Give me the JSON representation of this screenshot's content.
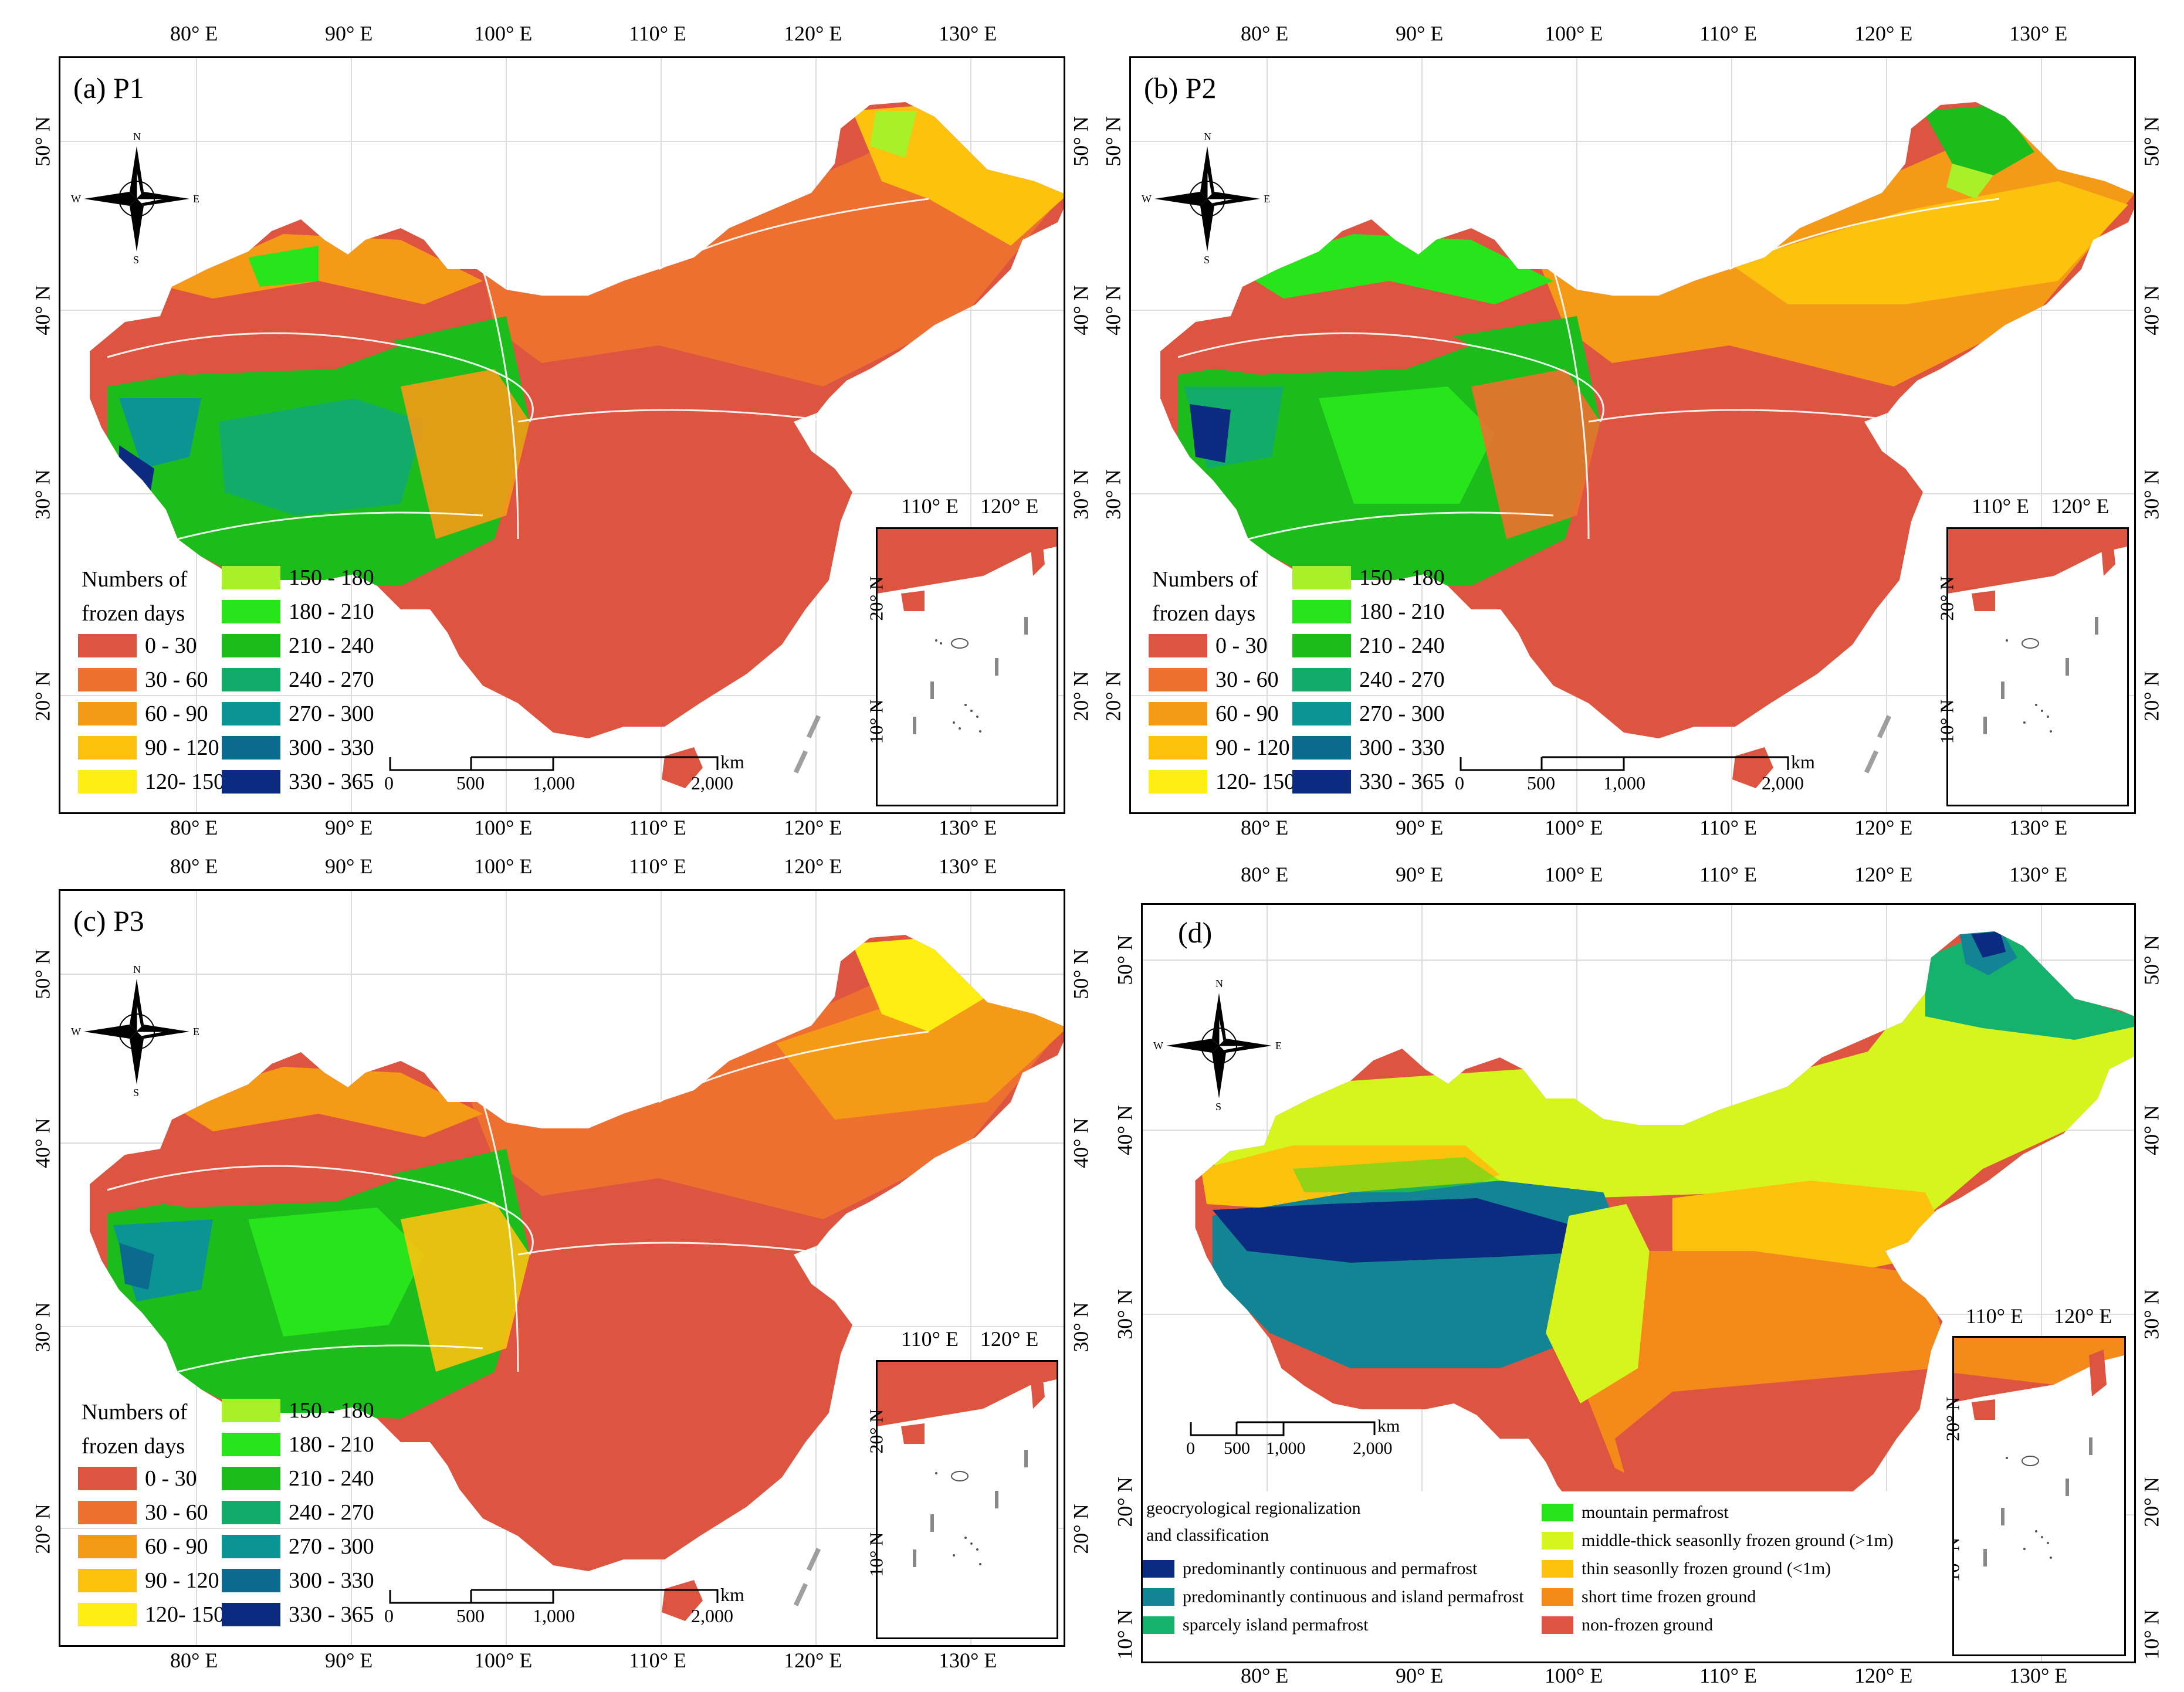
{
  "panels": [
    {
      "id": "a",
      "title": "(a) P1"
    },
    {
      "id": "b",
      "title": "(b) P2"
    },
    {
      "id": "c",
      "title": "(c) P3"
    },
    {
      "id": "d",
      "title": "(d)"
    }
  ],
  "axes": {
    "lon_labels": [
      "80° E",
      "90° E",
      "100° E",
      "110° E",
      "120° E",
      "130° E"
    ],
    "lat_labels": [
      "20° N",
      "30° N",
      "40° N",
      "50° N"
    ],
    "d_lat_extra": "10° N",
    "inset_lon": [
      "110° E",
      "120° E"
    ],
    "inset_lat": [
      "20° N",
      "10° N"
    ]
  },
  "compass": {
    "n": "N",
    "s": "S",
    "e": "E",
    "w": "W"
  },
  "scalebar": {
    "ticks": [
      "0",
      "500",
      "1,000",
      "2,000"
    ],
    "unit": "km"
  },
  "legend_frozen": {
    "title_line1": "Numbers of",
    "title_line2": "frozen days",
    "classes": [
      {
        "label": "0 - 30",
        "color": "#dd5540"
      },
      {
        "label": "30 - 60",
        "color": "#ee7030"
      },
      {
        "label": "60 - 90",
        "color": "#f59a16"
      },
      {
        "label": "90 - 120",
        "color": "#fcc20e"
      },
      {
        "label": "120- 150",
        "color": "#ffee14"
      },
      {
        "label": "150 - 180",
        "color": "#a8f02a"
      },
      {
        "label": "180 - 210",
        "color": "#27e41b"
      },
      {
        "label": "210 - 240",
        "color": "#1cbc1c"
      },
      {
        "label": "240 - 270",
        "color": "#12ac6a"
      },
      {
        "label": "270 - 300",
        "color": "#0a9494"
      },
      {
        "label": "300 - 330",
        "color": "#0b6b8f"
      },
      {
        "label": "330 - 365",
        "color": "#0b2a80"
      }
    ]
  },
  "legend_geo": {
    "title_line1": "geocryological regionalization",
    "title_line2": "and classification",
    "classes": [
      {
        "label": "predominantly continuous and permafrost",
        "color": "#0b2a80"
      },
      {
        "label": "predominantly continuous and island permafrost",
        "color": "#128494"
      },
      {
        "label": "sparcely island permafrost",
        "color": "#15b26e"
      },
      {
        "label": "mountain permafrost",
        "color": "#27e41b"
      },
      {
        "label": "middle-thick seasonlly frozen ground (>1m)",
        "color": "#d6f51e"
      },
      {
        "label": "thin seasonlly frozen ground (<1m)",
        "color": "#fcc20e"
      },
      {
        "label": "short time frozen ground",
        "color": "#f48a1a"
      },
      {
        "label": "non-frozen ground",
        "color": "#dd5540"
      }
    ]
  }
}
